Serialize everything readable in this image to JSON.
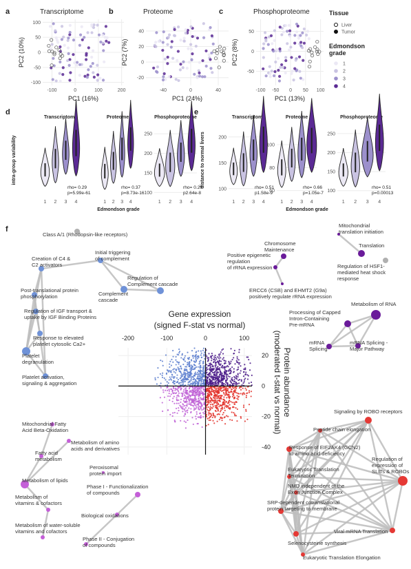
{
  "pca": [
    {
      "label": "a",
      "title": "Transcriptome",
      "xlabel": "PC1 (16%)",
      "ylabel": "PC2 (10%)",
      "xlim": [
        -140,
        210
      ],
      "ylim": [
        -110,
        110
      ],
      "xticks": [
        -100,
        0,
        100,
        200
      ],
      "yticks": [
        100,
        50,
        0,
        -50,
        -100
      ]
    },
    {
      "label": "b",
      "title": "Proteome",
      "xlabel": "PC1 (24%)",
      "ylabel": "PC2 (7%)",
      "xlim": [
        -65,
        55
      ],
      "ylim": [
        -30,
        55
      ],
      "xticks": [
        -40,
        0,
        40
      ],
      "yticks": [
        40,
        20,
        0,
        -20
      ]
    },
    {
      "label": "c",
      "title": "Phosphoproteome",
      "xlabel": "PC1 (13%)",
      "ylabel": "PC2 (8%)",
      "xlim": [
        -115,
        110
      ],
      "ylim": [
        -85,
        80
      ],
      "xticks": [
        -100,
        -50,
        0,
        50,
        100
      ],
      "yticks": [
        50,
        0,
        -50
      ]
    }
  ],
  "legend": {
    "tissue_title": "Tissue",
    "tissue_items": [
      "Liver",
      "Tumor"
    ],
    "grade_title_lines": [
      "Edmondson",
      "grade"
    ],
    "grade_items": [
      "1",
      "2",
      "3",
      "4"
    ],
    "grade_colors": [
      "#ebe8f4",
      "#c9c3e2",
      "#9c90cc",
      "#5b2a94"
    ]
  },
  "violins": [
    {
      "label": "d",
      "ylabel": "intra-group variability",
      "xlabel": "Edmondson grade",
      "xticks": [
        1,
        2,
        3,
        4
      ],
      "subpanels": [
        {
          "title": "Transcriptome",
          "stats": [
            "rho= 0.29",
            "p=5.99e-61"
          ]
        },
        {
          "title": "Proteome",
          "stats": [
            "rho= 0.37",
            "p=8.73e-16"
          ]
        },
        {
          "title": "Phosphoproteome",
          "ylim": [
            90,
            275
          ],
          "yticks": [
            250,
            200,
            150,
            100
          ],
          "stats": [
            "rho= 0.26",
            "p2.64e-8"
          ]
        }
      ]
    },
    {
      "label": "e",
      "ylabel": "distance to normal livers",
      "xlabel": "Edmondson grade",
      "xticks": [
        1,
        2,
        3,
        4
      ],
      "subpanels": [
        {
          "title": "Transcriptome",
          "ylim": [
            85,
            225
          ],
          "yticks": [
            200,
            150,
            100
          ],
          "stats": [
            "rho= 0.51",
            "p1.58e-9"
          ]
        },
        {
          "title": "Proteome",
          "ylim": [
            55,
            118
          ],
          "yticks": [
            100,
            80,
            60
          ],
          "stats": [
            "rho= 0.66",
            "p=1.05e-7"
          ]
        },
        {
          "title": "Phosphoproteome",
          "ylim": [
            85,
            275
          ],
          "yticks": [
            250,
            200,
            150,
            100
          ],
          "stats": [
            "rho= 0.51",
            "p=0.00013"
          ]
        }
      ]
    }
  ],
  "network": {
    "label": "f",
    "center": {
      "title": "Gene expression",
      "subtitle": "(signed F-stat vs normal)",
      "ylabel_lines": [
        "Protein abundance",
        "(moderated t-stat vs normal)"
      ],
      "xlim": [
        -225,
        120
      ],
      "ylim": [
        -45,
        25
      ],
      "xticks": [
        -200,
        -100,
        0,
        100
      ],
      "yticks": [
        20,
        0,
        -20,
        -40
      ]
    },
    "nodes": [
      {
        "label": [
          "Class A/1 (Rhodopsin-like receptors)"
        ]
      },
      {
        "label": [
          "Creation of C4 &",
          "C2 activators"
        ]
      },
      {
        "label": [
          "Initial triggering",
          "of complement"
        ]
      },
      {
        "label": [
          "Regulation of",
          "Complement cascade"
        ]
      },
      {
        "label": [
          "Complement",
          "cascade"
        ]
      },
      {
        "label": [
          "Post-translational protein",
          "phosphorylation"
        ]
      },
      {
        "label": [
          "Regulation of IGF transport &",
          "uptake by IGF Binding Proteins"
        ]
      },
      {
        "label": [
          "Response to elevated",
          "platelet cytosolic Ca2+"
        ]
      },
      {
        "label": [
          "Platelet",
          "degranulation"
        ]
      },
      {
        "label": [
          "Platelet activation,",
          "signaling & aggregation"
        ]
      },
      {
        "label": [
          "Chromosome",
          "Maintenance"
        ]
      },
      {
        "label": [
          "Positive epigenetic",
          "regulation",
          "of rRNA expression"
        ]
      },
      {
        "label": [
          "ERCC6 (CSB) and EHMT2 (G9a)",
          "positively regulate rRNA expression"
        ]
      },
      {
        "label": [
          "Mitochondrial",
          "translation initiation"
        ]
      },
      {
        "label": [
          "Translation"
        ]
      },
      {
        "label": [
          "Regulation of HSF1-",
          "mediated heat shock",
          "response"
        ]
      },
      {
        "label": [
          "Metabolism of RNA"
        ]
      },
      {
        "label": [
          "Processing of Capped",
          "Intron-Containing",
          "Pre-mRNA"
        ]
      },
      {
        "label": [
          "mRNA",
          "Splicing"
        ]
      },
      {
        "label": [
          "mRNA Splicing -",
          "Major Pathway"
        ]
      },
      {
        "label": [
          "Mitochondrial Fatty",
          "Acid Beta-Oxidation"
        ]
      },
      {
        "label": [
          "Metabolism of amino",
          "acids and derivatives"
        ]
      },
      {
        "label": [
          "Fatty acid",
          "metabolism"
        ]
      },
      {
        "label": [
          "Metabolism of lipids"
        ]
      },
      {
        "label": [
          "Metabolism of",
          "vitamins & cofactors"
        ]
      },
      {
        "label": [
          "Metabolism of water-soluble",
          "vitamins and cofactors"
        ]
      },
      {
        "label": [
          "Peroxisomal",
          "protein import"
        ]
      },
      {
        "label": [
          "Phase I - Functionalization",
          "of compounds"
        ]
      },
      {
        "label": [
          "Biological oxidations"
        ]
      },
      {
        "label": [
          "Phase II - Conjugation",
          "of compounds"
        ]
      },
      {
        "label": [
          "Signaling by ROBO receptors"
        ]
      },
      {
        "label": [
          "Peptide chain elongation"
        ]
      },
      {
        "label": [
          "Response of EIF2AK4 (GCN2)",
          "to amino acid deficiency"
        ]
      },
      {
        "label": [
          "Regulation of",
          "expression of",
          "SLITs & ROBOs"
        ]
      },
      {
        "label": [
          "Eukaryotic Translation",
          "Termination"
        ]
      },
      {
        "label": [
          "NMD independent of the",
          "Exon Junction Complex"
        ]
      },
      {
        "label": [
          "SRP-dependent cotranslational",
          "protein targeting to membrane"
        ]
      },
      {
        "label": [
          "Viral mRNA Translation"
        ]
      },
      {
        "label": [
          "Selenocysteine synthesis"
        ]
      },
      {
        "label": [
          "Eukaryotic Translation Elongation"
        ]
      }
    ]
  }
}
